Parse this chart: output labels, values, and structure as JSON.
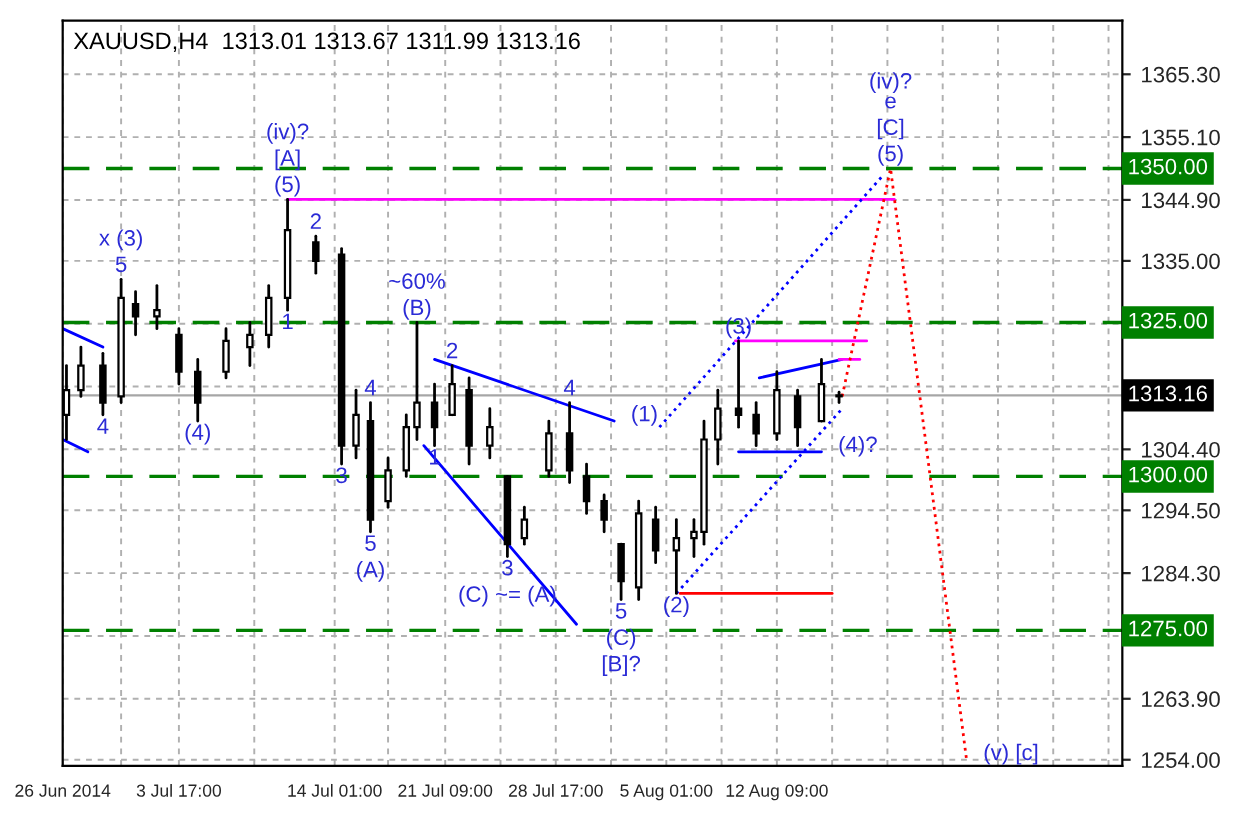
{
  "chart_data": {
    "type": "candlestick",
    "title": "XAUUSD,H4  1313.01 1313.67 1311.99 1313.16",
    "x": [
      "2014-06-26T06:00",
      "2014-06-27T05:00",
      "2014-06-28T16:00",
      "2014-06-29T21:00",
      "2014-06-30T20:00",
      "2014-07-02T06:00",
      "2014-07-03T17:00",
      "2014-07-04T23:00",
      "2014-07-06T20:00",
      "2014-07-08T10:00",
      "2014-07-09T16:00",
      "2014-07-10T22:00",
      "2014-07-12T19:00",
      "2014-07-14T12:00",
      "2014-07-15T11:00",
      "2014-07-16T10:00",
      "2014-07-17T14:00",
      "2014-07-18T19:00",
      "2014-07-19T12:00",
      "2014-07-20T16:00",
      "2014-07-21T20:00",
      "2014-07-22T23:00",
      "2014-07-24T08:00",
      "2014-07-25T12:00",
      "2014-07-26T15:00",
      "2014-07-28T06:00",
      "2014-07-29T15:00",
      "2014-07-30T18:00",
      "2014-07-31T22:00",
      "2014-08-02T01:00",
      "2014-08-03T05:00",
      "2014-08-04T08:00",
      "2014-08-05T17:00",
      "2014-08-06T21:00",
      "2014-08-07T13:00",
      "2014-08-08T11:00",
      "2014-08-09T20:00",
      "2014-08-11T00:00",
      "2014-08-12T09:00",
      "2014-08-13T18:00",
      "2014-08-15T08:00",
      "2014-08-16T12:00"
    ],
    "ohlc": [
      [
        1310,
        1318,
        1306,
        1314
      ],
      [
        1314,
        1321,
        1313,
        1318
      ],
      [
        1318,
        1320,
        1310,
        1312
      ],
      [
        1313,
        1332,
        1312,
        1329
      ],
      [
        1328,
        1330,
        1323,
        1326
      ],
      [
        1326,
        1331,
        1324,
        1327
      ],
      [
        1323,
        1324,
        1315,
        1317
      ],
      [
        1317,
        1319,
        1309,
        1312
      ],
      [
        1317,
        1324,
        1316,
        1322
      ],
      [
        1321,
        1325,
        1318,
        1323
      ],
      [
        1323,
        1331,
        1321,
        1329
      ],
      [
        1329,
        1345,
        1327,
        1340
      ],
      [
        1338,
        1339,
        1333,
        1335
      ],
      [
        1336,
        1337,
        1302,
        1305
      ],
      [
        1305,
        1314,
        1303,
        1310
      ],
      [
        1309,
        1312,
        1291,
        1293
      ],
      [
        1296,
        1303,
        1295,
        1301
      ],
      [
        1301,
        1310,
        1300,
        1308
      ],
      [
        1308,
        1325,
        1306,
        1312
      ],
      [
        1312,
        1315,
        1305,
        1308
      ],
      [
        1310,
        1318,
        1310,
        1315
      ],
      [
        1314,
        1316,
        1302,
        1305
      ],
      [
        1305,
        1311,
        1303,
        1308
      ],
      [
        1300,
        1300,
        1287,
        1289
      ],
      [
        1290,
        1295,
        1289,
        1293
      ],
      [
        1301,
        1309,
        1300,
        1307
      ],
      [
        1307,
        1312,
        1299,
        1301
      ],
      [
        1300,
        1302,
        1294,
        1296
      ],
      [
        1296,
        1297,
        1291,
        1293
      ],
      [
        1289,
        1289,
        1280,
        1283
      ],
      [
        1282,
        1296,
        1280,
        1294
      ],
      [
        1293,
        1295,
        1286,
        1288
      ],
      [
        1288,
        1293,
        1281,
        1290
      ],
      [
        1290,
        1293,
        1287,
        1291
      ],
      [
        1291,
        1309,
        1289,
        1306
      ],
      [
        1306,
        1314,
        1302,
        1311
      ],
      [
        1311,
        1322,
        1308,
        1310
      ],
      [
        1310,
        1312,
        1305,
        1307
      ],
      [
        1307,
        1317,
        1306,
        1314
      ],
      [
        1313,
        1314,
        1305,
        1308
      ],
      [
        1309,
        1319,
        1309,
        1315
      ],
      [
        1313.01,
        1313.67,
        1311.99,
        1313.16
      ]
    ],
    "series": [
      {
        "type": "line",
        "color": "#ff00ff",
        "x": [
          "2014-07-10T22:00",
          "2014-08-20T04:00"
        ],
        "values": [
          1345,
          1345
        ],
        "line_style": "solid"
      },
      {
        "type": "line",
        "color": "#0000ff",
        "x": [
          "2014-06-26T00:00",
          "2014-06-28T16:00"
        ],
        "values": [
          1324,
          1321
        ],
        "line_style": "solid"
      },
      {
        "type": "line",
        "color": "#0000ff",
        "x": [
          "2014-06-26T00:00",
          "2014-06-27T16:00"
        ],
        "values": [
          1306,
          1304
        ],
        "line_style": "solid"
      },
      {
        "type": "line",
        "color": "#0000ff",
        "x": [
          "2014-07-20T16:00",
          "2014-08-01T14:00"
        ],
        "values": [
          1319,
          1309
        ],
        "line_style": "solid"
      },
      {
        "type": "line",
        "color": "#0000ff",
        "x": [
          "2014-07-19T23:00",
          "2014-07-30T02:00"
        ],
        "values": [
          1305,
          1276
        ],
        "line_style": "solid"
      },
      {
        "type": "line",
        "color": "#0000ff",
        "x": [
          "2014-08-04T14:00",
          "2014-08-19T11:00"
        ],
        "values": [
          1308,
          1349
        ],
        "line_style": "dotted"
      },
      {
        "type": "line",
        "color": "#0000ff",
        "x": [
          "2014-08-05T17:00",
          "2014-08-16T17:00"
        ],
        "values": [
          1281,
          1311
        ],
        "line_style": "dotted"
      },
      {
        "type": "line",
        "color": "#0000ff",
        "x": [
          "2014-08-09T20:00",
          "2014-08-15T08:00"
        ],
        "values": [
          1304,
          1304
        ],
        "line_style": "solid"
      },
      {
        "type": "line",
        "color": "#0000ff",
        "x": [
          "2014-08-11T05:00",
          "2014-08-16T17:00"
        ],
        "values": [
          1316,
          1319
        ],
        "line_style": "solid"
      },
      {
        "type": "line",
        "color": "#ff00ff",
        "x": [
          "2014-08-09T15:00",
          "2014-08-18T08:00"
        ],
        "values": [
          1322,
          1322
        ],
        "line_style": "solid"
      },
      {
        "type": "line",
        "color": "#ff00ff",
        "x": [
          "2014-08-16T12:00",
          "2014-08-17T21:00"
        ],
        "values": [
          1319,
          1319
        ],
        "line_style": "solid"
      },
      {
        "type": "line",
        "color": "#ff0000",
        "x": [
          "2014-08-05T23:00",
          "2014-08-16T01:00"
        ],
        "values": [
          1281,
          1281
        ],
        "line_style": "solid"
      },
      {
        "type": "line",
        "color": "#ff0000",
        "x": [
          "2014-08-16T17:00",
          "2014-08-19T22:00",
          "2014-08-24T23:00"
        ],
        "values": [
          1313,
          1350,
          1254
        ],
        "line_style": "dotted"
      }
    ],
    "xlim": [
      "2014-06-26T00:00",
      "2014-09-04T07:00"
    ],
    "xticks": [
      {
        "value": "2014-06-26",
        "label": "26 Jun 2014"
      },
      {
        "value": "2014-06-29T21:00",
        "label": null
      },
      {
        "value": "2014-07-03T17:00",
        "label": "3 Jul 17:00"
      },
      {
        "value": "2014-07-08T17:00",
        "label": null
      },
      {
        "value": "2014-07-14T01:00",
        "label": "14 Jul 01:00"
      },
      {
        "value": "2014-07-17T14:00",
        "label": null
      },
      {
        "value": "2014-07-21T09:00",
        "label": "21 Jul 09:00"
      },
      {
        "value": "2014-07-25T01:00",
        "label": null
      },
      {
        "value": "2014-07-28T17:00",
        "label": "28 Jul 17:00"
      },
      {
        "value": "2014-08-01T09:00",
        "label": null
      },
      {
        "value": "2014-08-05T01:00",
        "label": "5 Aug 01:00"
      },
      {
        "value": "2014-08-08T17:00",
        "label": null
      },
      {
        "value": "2014-08-12T09:00",
        "label": "12 Aug 09:00"
      },
      {
        "value": "2014-08-16T01:00",
        "label": null
      },
      {
        "value": "2014-08-19T17:00",
        "label": null
      },
      {
        "value": "2014-08-23T09:00",
        "label": null
      },
      {
        "value": "2014-08-27T01:00",
        "label": null
      },
      {
        "value": "2014-08-30T17:00",
        "label": null
      },
      {
        "value": "2014-09-03T09:00",
        "label": null
      }
    ],
    "ylim": [
      1253,
      1374
    ],
    "yticks": [
      {
        "value": 1254.0,
        "label": "1254.00"
      },
      {
        "value": 1263.9,
        "label": "1263.90"
      },
      {
        "value": 1274.1,
        "label": null
      },
      {
        "value": 1284.3,
        "label": "1284.30"
      },
      {
        "value": 1294.5,
        "label": "1294.50"
      },
      {
        "value": 1304.4,
        "label": "1304.40"
      },
      {
        "value": 1314.6,
        "label": null
      },
      {
        "value": 1324.8,
        "label": null
      },
      {
        "value": 1335.0,
        "label": "1335.00"
      },
      {
        "value": 1344.9,
        "label": "1344.90"
      },
      {
        "value": 1355.1,
        "label": "1355.10"
      },
      {
        "value": 1365.3,
        "label": "1365.30"
      }
    ],
    "grid": true,
    "ref_lines": [
      {
        "axis": "y",
        "value": 1350,
        "label": "1350.00",
        "color": "#008000",
        "line_style": "dashed"
      },
      {
        "axis": "y",
        "value": 1325,
        "label": "1325.00",
        "color": "#008000",
        "line_style": "dashed"
      },
      {
        "axis": "y",
        "value": 1300,
        "label": "1300.00",
        "color": "#008000",
        "line_style": "dashed"
      },
      {
        "axis": "y",
        "value": 1275,
        "label": "1275.00",
        "color": "#008000",
        "line_style": "dashed"
      },
      {
        "axis": "y",
        "value": 1313.16,
        "label": "1313.16",
        "color": "#000000",
        "line_style": "solid"
      }
    ],
    "annotations": [
      {
        "text": "5",
        "x": "2014-06-29T21:00",
        "y": 1332
      },
      {
        "text": "x (3)",
        "x": "2014-06-29T21:00",
        "y": 1332
      },
      {
        "text": "4",
        "x": "2014-06-28T16:00",
        "y": 1310
      },
      {
        "text": "(4)",
        "x": "2014-07-04T23:00",
        "y": 1309
      },
      {
        "text": "(5)",
        "x": "2014-07-10T22:00",
        "y": 1345
      },
      {
        "text": "[A]",
        "x": "2014-07-10T22:00",
        "y": 1345
      },
      {
        "text": "(iv)?",
        "x": "2014-07-10T22:00",
        "y": 1345
      },
      {
        "text": "1",
        "x": "2014-07-10T22:00",
        "y": 1327
      },
      {
        "text": "2",
        "x": "2014-07-12T19:00",
        "y": 1339
      },
      {
        "text": "3",
        "x": "2014-07-14T12:00",
        "y": 1302
      },
      {
        "text": "4",
        "x": "2014-07-16T10:00",
        "y": 1312
      },
      {
        "text": "5",
        "x": "2014-07-16T10:00",
        "y": 1291
      },
      {
        "text": "(A)",
        "x": "2014-07-16T10:00",
        "y": 1291
      },
      {
        "text": "(B)",
        "x": "2014-07-19T12:00",
        "y": 1325
      },
      {
        "text": "~60%",
        "x": "2014-07-19T12:00",
        "y": 1325
      },
      {
        "text": "1",
        "x": "2014-07-20T16:00",
        "y": 1305
      },
      {
        "text": "2",
        "x": "2014-07-21T20:00",
        "y": 1318
      },
      {
        "text": "3",
        "x": "2014-07-25T12:00",
        "y": 1287
      },
      {
        "text": "(C) ~= (A)",
        "x": "2014-07-25T12:00",
        "y": 1287
      },
      {
        "text": "4",
        "x": "2014-07-29T15:00",
        "y": 1312
      },
      {
        "text": "(1)",
        "x": "2014-08-01T14:00",
        "y": 1309
      },
      {
        "text": "5",
        "x": "2014-08-02T01:00",
        "y": 1280
      },
      {
        "text": "(C)",
        "x": "2014-08-02T01:00",
        "y": 1280
      },
      {
        "text": "[B]?",
        "x": "2014-08-02T01:00",
        "y": 1280
      },
      {
        "text": "(2)",
        "x": "2014-08-05T17:00",
        "y": 1281
      },
      {
        "text": "(3)",
        "x": "2014-08-09T20:00",
        "y": 1322
      },
      {
        "text": "(4)?",
        "x": "2014-08-15T08:00",
        "y": 1304
      },
      {
        "text": "(5)",
        "x": "2014-08-19T22:00",
        "y": 1350
      },
      {
        "text": "[C]",
        "x": "2014-08-19T22:00",
        "y": 1350
      },
      {
        "text": "(iv)?\ne",
        "x": "2014-08-19T22:00",
        "y": 1350
      },
      {
        "text": "(v) [c]",
        "x": "2014-08-24T23:00",
        "y": 1254
      }
    ]
  }
}
